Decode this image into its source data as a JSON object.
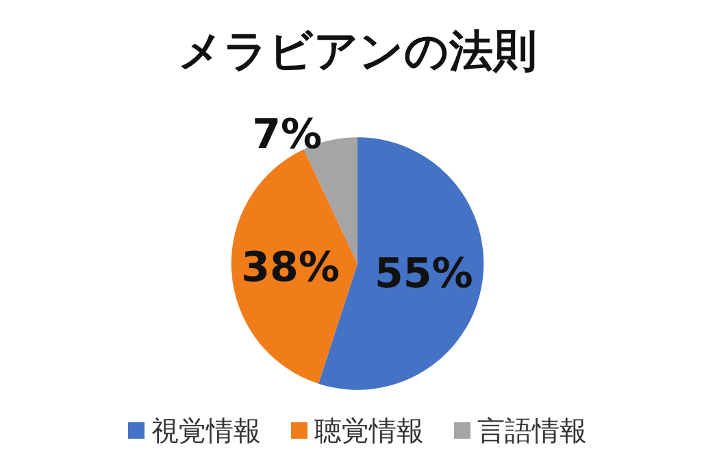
{
  "chart_data": {
    "type": "pie",
    "title": "メラビアンの法則",
    "categories": [
      "視覚情報",
      "聴覚情報",
      "言語情報"
    ],
    "values": [
      55,
      38,
      7
    ],
    "colors": [
      "#4472c4",
      "#f07c1a",
      "#a5a5a5"
    ],
    "value_labels": [
      "55%",
      "38%",
      "7%"
    ],
    "legend": "bottom"
  }
}
